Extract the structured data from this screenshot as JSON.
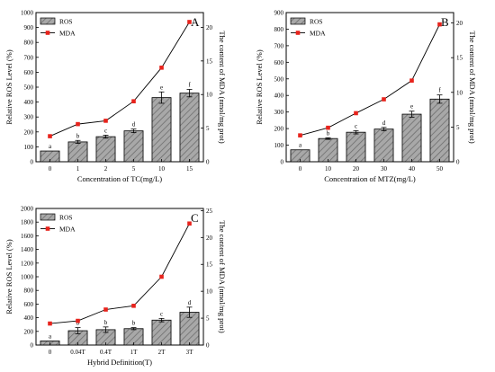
{
  "colors": {
    "bar_fill": "#a8a8a8",
    "bar_hatch": "#6e6e6e",
    "line": "#000000",
    "marker": "#e8231c"
  },
  "chart_data": [
    {
      "type": "bar",
      "panel_label": "A",
      "categories": [
        "0",
        "1",
        "2",
        "5",
        "10",
        "15"
      ],
      "xlabel": "Concentration of TC(mg/L)",
      "ylabel": "Relative ROS Level (%)",
      "y2label": "The content of  MDA (nmol/mg prot)",
      "ylim": [
        0,
        1000
      ],
      "y2lim": [
        0,
        22.2
      ],
      "yticks": [
        0,
        100,
        200,
        300,
        400,
        500,
        600,
        700,
        800,
        900,
        1000
      ],
      "y2ticks": [
        0,
        5,
        10,
        15,
        20
      ],
      "legend": {
        "placement": "top-left",
        "entries": [
          "ROS",
          "MDA"
        ]
      },
      "series": [
        {
          "name": "ROS",
          "type": "bar",
          "values": [
            72,
            133,
            168,
            207,
            430,
            460
          ],
          "errors": [
            0,
            10,
            10,
            12,
            38,
            25
          ],
          "letters": [
            "a",
            "b",
            "c",
            "d",
            "e",
            "f"
          ]
        },
        {
          "name": "MDA",
          "type": "line",
          "axis": "right",
          "values": [
            3.8,
            5.6,
            6.1,
            9.0,
            14.0,
            20.8
          ]
        }
      ]
    },
    {
      "type": "bar",
      "panel_label": "B",
      "categories": [
        "0",
        "10",
        "20",
        "30",
        "40",
        "50"
      ],
      "xlabel": "Concentration of MTZ(mg/L)",
      "ylabel": "Relative ROS Level (%)",
      "y2label": "The content of  MDA (nmol/mg prot)",
      "ylim": [
        0,
        900
      ],
      "y2lim": [
        0,
        21.5
      ],
      "yticks": [
        0,
        100,
        200,
        300,
        400,
        500,
        600,
        700,
        800,
        900
      ],
      "y2ticks": [
        0,
        5,
        10,
        15,
        20
      ],
      "legend": {
        "placement": "top-left",
        "entries": [
          "ROS",
          "MDA"
        ]
      },
      "series": [
        {
          "name": "ROS",
          "type": "bar",
          "values": [
            72,
            140,
            178,
            197,
            287,
            378
          ],
          "errors": [
            0,
            5,
            10,
            10,
            18,
            25
          ],
          "letters": [
            "a",
            "b",
            "c",
            "d",
            "e",
            "f"
          ]
        },
        {
          "name": "MDA",
          "type": "line",
          "axis": "right",
          "values": [
            3.8,
            4.9,
            7.0,
            9.0,
            11.7,
            19.8
          ]
        }
      ]
    },
    {
      "type": "bar",
      "panel_label": "C",
      "categories": [
        "0",
        "0.04T",
        "0.4T",
        "1T",
        "2T",
        "3T"
      ],
      "xlabel": "Hybrid Definition(T)",
      "ylabel": "Relative ROS Level (%)",
      "y2label": "The content of  MDA (nmol/mg prot)",
      "ylim": [
        0,
        2000
      ],
      "y2lim": [
        0,
        25.4
      ],
      "yticks": [
        0,
        200,
        400,
        600,
        800,
        1000,
        1200,
        1400,
        1600,
        1800,
        2000
      ],
      "y2ticks": [
        0,
        5,
        10,
        15,
        20,
        25
      ],
      "legend": {
        "placement": "top-left",
        "entries": [
          "ROS",
          "MDA"
        ]
      },
      "series": [
        {
          "name": "ROS",
          "type": "bar",
          "values": [
            60,
            210,
            225,
            240,
            365,
            480
          ],
          "errors": [
            0,
            45,
            40,
            15,
            25,
            75
          ],
          "letters": [
            "a",
            "b",
            "b",
            "b",
            "c",
            "d"
          ]
        },
        {
          "name": "MDA",
          "type": "line",
          "axis": "right",
          "values": [
            4.0,
            4.5,
            6.6,
            7.3,
            12.7,
            22.6
          ]
        }
      ]
    }
  ]
}
